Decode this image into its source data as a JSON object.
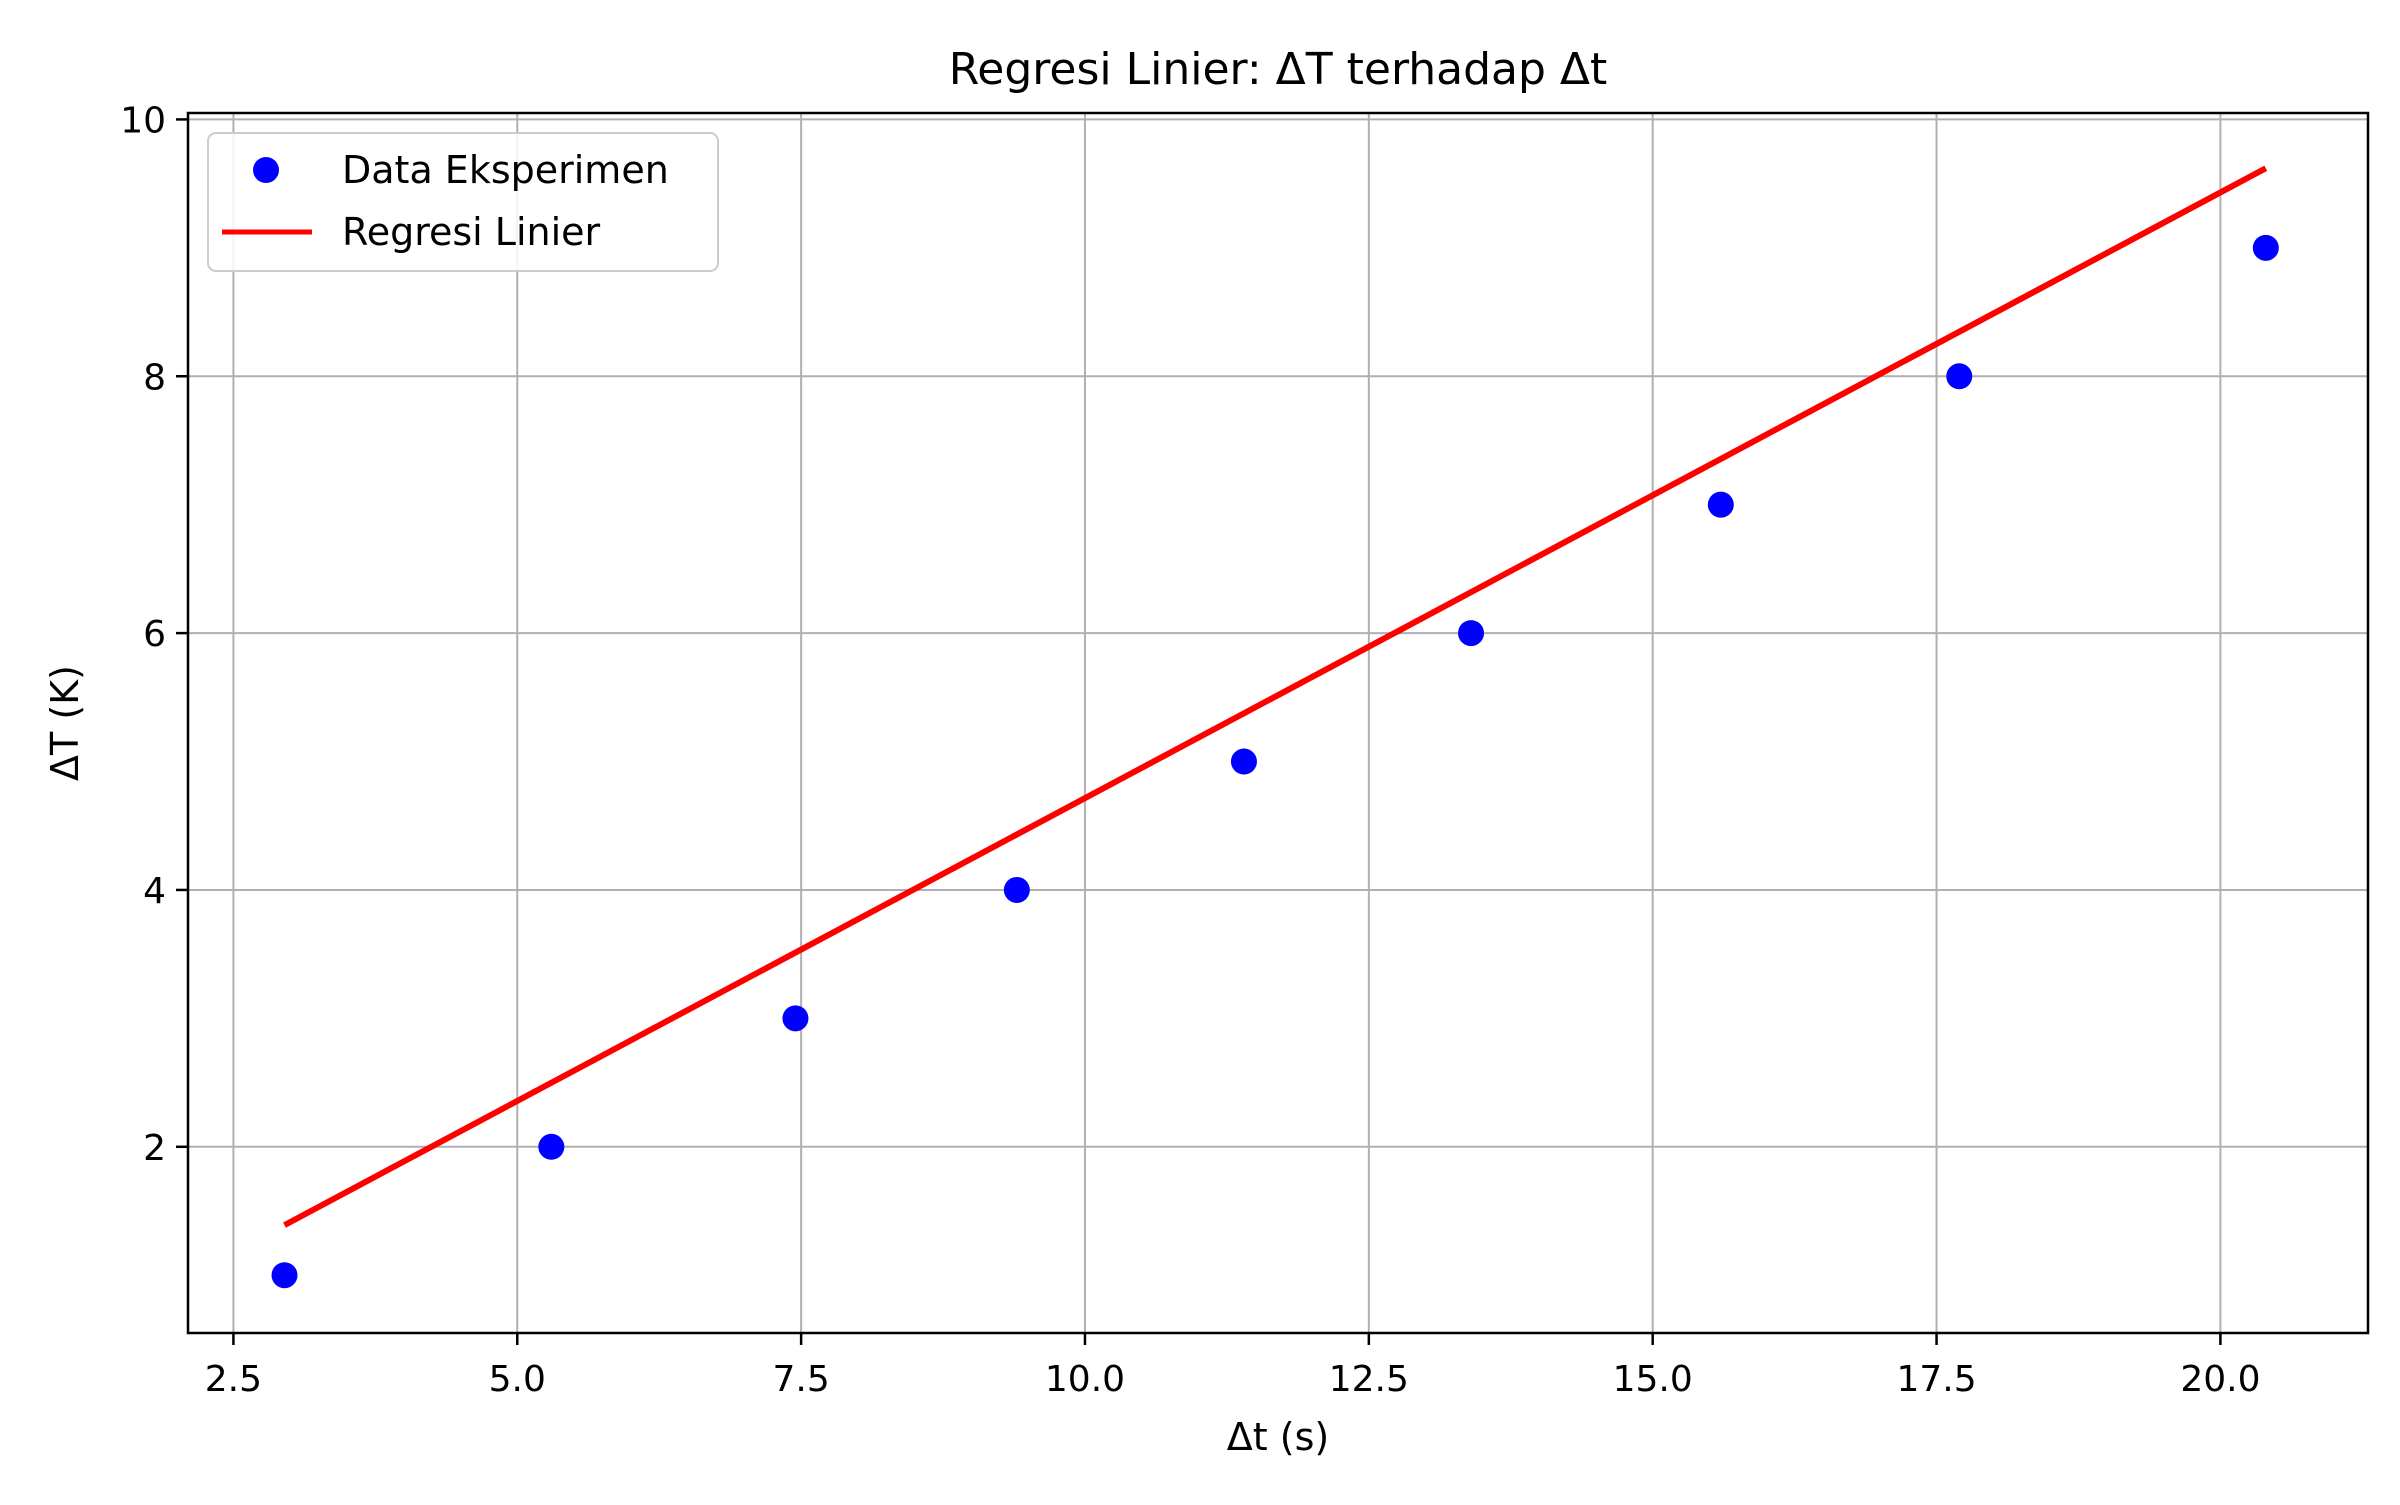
{
  "chart_data": {
    "type": "scatter",
    "title": "Regresi Linier: ΔT terhadap Δt",
    "xlabel": "Δt (s)",
    "ylabel": "ΔT (K)",
    "xlim": [
      2.1,
      21.3
    ],
    "ylim": [
      0.55,
      10.05
    ],
    "xticks": [
      2.5,
      5.0,
      7.5,
      10.0,
      12.5,
      15.0,
      17.5,
      20.0
    ],
    "xtick_labels": [
      "2.5",
      "5.0",
      "7.5",
      "10.0",
      "12.5",
      "15.0",
      "17.5",
      "20.0"
    ],
    "yticks": [
      2,
      4,
      6,
      8,
      10
    ],
    "ytick_labels": [
      "2",
      "4",
      "6",
      "8",
      "10"
    ],
    "grid": true,
    "legend_position": "top-left",
    "series": [
      {
        "name": "Data Eksperimen",
        "kind": "scatter",
        "color": "#0000ff",
        "x": [
          2.95,
          5.3,
          7.45,
          9.4,
          11.4,
          13.4,
          15.6,
          17.7,
          20.4
        ],
        "y": [
          1,
          2,
          3,
          4,
          5,
          6,
          7,
          8,
          9
        ]
      },
      {
        "name": "Regresi Linier",
        "kind": "line",
        "color": "#ff0000",
        "x": [
          2.95,
          20.4
        ],
        "y": [
          1.39,
          9.62
        ]
      }
    ]
  }
}
